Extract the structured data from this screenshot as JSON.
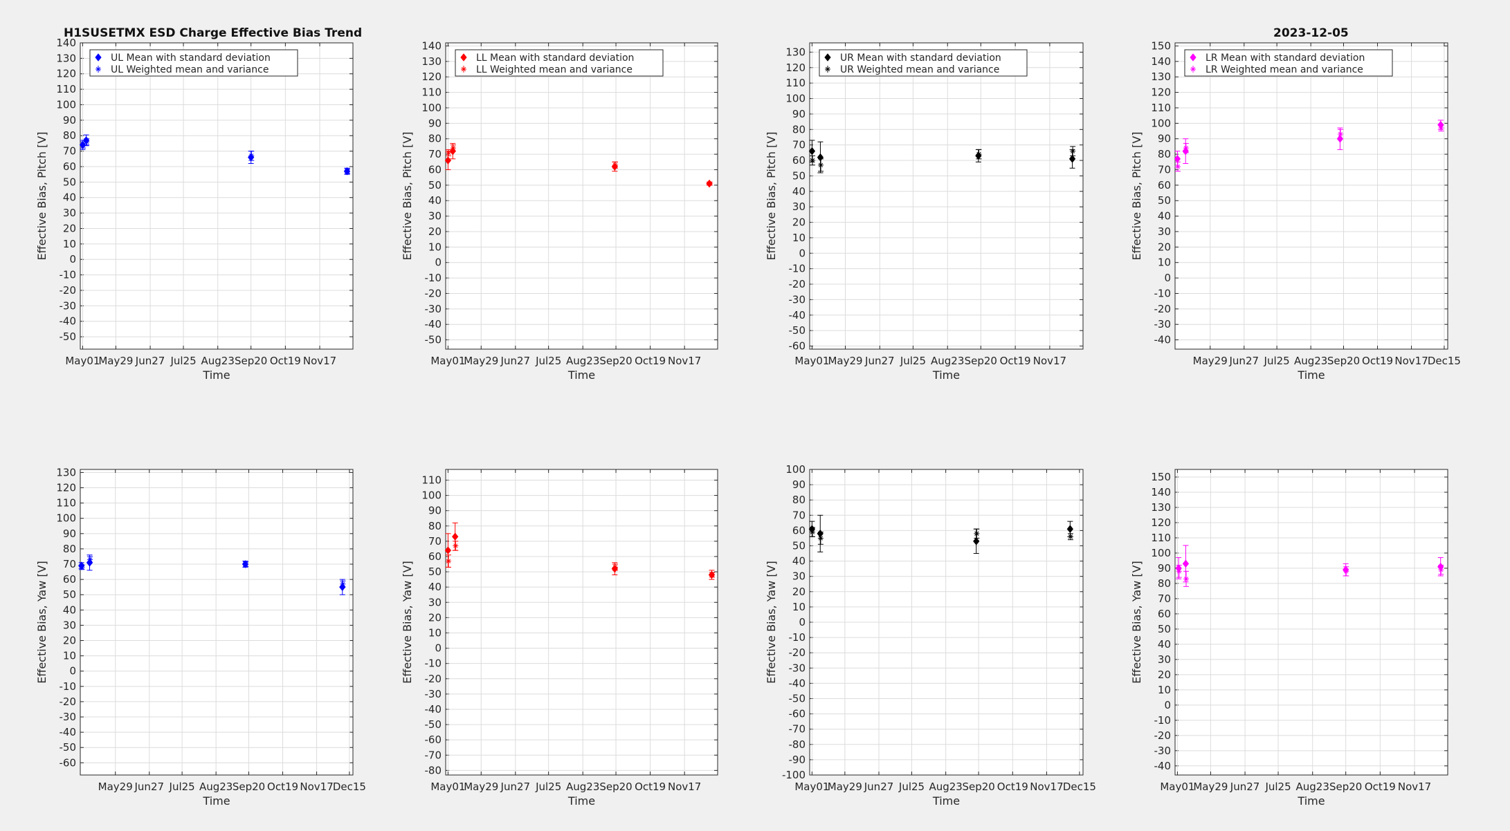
{
  "figure": {
    "title_left": "H1SUSETMX ESD Charge Effective Bias Trend",
    "title_right": "2023-12-05"
  },
  "chart_data": [
    {
      "id": "ul-pitch",
      "type": "scatter",
      "xlabel": "Time",
      "ylabel": "Effective Bias, Pitch [V]",
      "ylim": [
        -58,
        140
      ],
      "yticks_from": -50,
      "yticks_to": 140,
      "xlim": [
        "2023-04-29",
        "2023-12-15"
      ],
      "xticks": [
        "May01",
        "May29",
        "Jun27",
        "Jul25",
        "Aug23",
        "Sep20",
        "Oct19",
        "Nov17"
      ],
      "grid": true,
      "legend": "top-left",
      "color": "#0000ff",
      "legend_entries": [
        "UL Mean with standard deviation",
        "UL Weighted mean and variance"
      ],
      "series": [
        {
          "marker": "diamond",
          "points": [
            {
              "x": "2023-05-01",
              "y": 74,
              "err": 3
            },
            {
              "x": "2023-05-04",
              "y": 77,
              "err": 3.5
            },
            {
              "x": "2023-09-20",
              "y": 66,
              "err": 4
            },
            {
              "x": "2023-12-10",
              "y": 57,
              "err": 2
            }
          ]
        },
        {
          "marker": "asterisk",
          "points": [
            {
              "x": "2023-05-01",
              "y": 74,
              "err": 2
            },
            {
              "x": "2023-05-04",
              "y": 76,
              "err": 2
            },
            {
              "x": "2023-09-20",
              "y": 67,
              "err": 3
            },
            {
              "x": "2023-12-10",
              "y": 57,
              "err": 1.5
            }
          ]
        }
      ]
    },
    {
      "id": "ll-pitch",
      "type": "scatter",
      "xlabel": "Time",
      "ylabel": "Effective Bias, Pitch [V]",
      "ylim": [
        -56,
        142
      ],
      "yticks_from": -50,
      "yticks_to": 140,
      "xlim": [
        "2023-04-29",
        "2023-12-15"
      ],
      "xticks": [
        "May01",
        "May29",
        "Jun27",
        "Jul25",
        "Aug23",
        "Sep20",
        "Oct19",
        "Nov17"
      ],
      "grid": true,
      "legend": "top-left",
      "color": "#ff0000",
      "legend_entries": [
        "LL Mean with standard deviation",
        "LL Weighted mean and variance"
      ],
      "series": [
        {
          "marker": "diamond",
          "points": [
            {
              "x": "2023-05-01",
              "y": 66,
              "err": 6
            },
            {
              "x": "2023-05-05",
              "y": 72,
              "err": 5
            },
            {
              "x": "2023-09-19",
              "y": 62,
              "err": 3
            },
            {
              "x": "2023-12-08",
              "y": 51,
              "err": 1
            }
          ]
        },
        {
          "marker": "asterisk",
          "points": [
            {
              "x": "2023-05-01",
              "y": 71,
              "err": 2
            },
            {
              "x": "2023-05-05",
              "y": 74,
              "err": 2
            },
            {
              "x": "2023-09-19",
              "y": 63,
              "err": 2
            },
            {
              "x": "2023-12-08",
              "y": 51,
              "err": 1
            }
          ]
        }
      ]
    },
    {
      "id": "ur-pitch",
      "type": "scatter",
      "xlabel": "Time",
      "ylabel": "Effective Bias, Pitch [V]",
      "ylim": [
        -62,
        136
      ],
      "yticks_from": -60,
      "yticks_to": 130,
      "xlim": [
        "2023-04-29",
        "2023-12-15"
      ],
      "xticks": [
        "May01",
        "May29",
        "Jun27",
        "Jul25",
        "Aug23",
        "Sep20",
        "Oct19",
        "Nov17"
      ],
      "grid": true,
      "legend": "top-left",
      "color": "#000000",
      "legend_entries": [
        "UR Mean with standard deviation",
        "UR Weighted mean and variance"
      ],
      "series": [
        {
          "marker": "diamond",
          "points": [
            {
              "x": "2023-05-01",
              "y": 66,
              "err": 7
            },
            {
              "x": "2023-05-08",
              "y": 62,
              "err": 10
            },
            {
              "x": "2023-09-18",
              "y": 63,
              "err": 4
            },
            {
              "x": "2023-12-06",
              "y": 61,
              "err": 6
            }
          ]
        },
        {
          "marker": "asterisk",
          "points": [
            {
              "x": "2023-05-01",
              "y": 60,
              "err": 3
            },
            {
              "x": "2023-05-08",
              "y": 57,
              "err": 4
            },
            {
              "x": "2023-09-18",
              "y": 64,
              "err": 3
            },
            {
              "x": "2023-12-06",
              "y": 66,
              "err": 3
            }
          ]
        }
      ]
    },
    {
      "id": "lr-pitch",
      "type": "scatter",
      "xlabel": "Time",
      "ylabel": "Effective Bias, Pitch [V]",
      "ylim": [
        -46,
        152
      ],
      "yticks_from": -40,
      "yticks_to": 150,
      "xlim": [
        "2023-04-29",
        "2023-12-18"
      ],
      "xticks": [
        "May29",
        "Jun27",
        "Jul25",
        "Aug23",
        "Sep20",
        "Oct19",
        "Nov17",
        "Dec15"
      ],
      "grid": true,
      "legend": "top-left",
      "color": "#ff00ff",
      "legend_entries": [
        "LR Mean with standard deviation",
        "LR Weighted mean and variance"
      ],
      "series": [
        {
          "marker": "diamond",
          "points": [
            {
              "x": "2023-05-01",
              "y": 77,
              "err": 5
            },
            {
              "x": "2023-05-08",
              "y": 82,
              "err": 8
            },
            {
              "x": "2023-09-17",
              "y": 90,
              "err": 7
            },
            {
              "x": "2023-12-12",
              "y": 99,
              "err": 3
            }
          ]
        },
        {
          "marker": "asterisk",
          "points": [
            {
              "x": "2023-05-01",
              "y": 72,
              "err": 3
            },
            {
              "x": "2023-05-08",
              "y": 84,
              "err": 3
            },
            {
              "x": "2023-09-17",
              "y": 93,
              "err": 3
            },
            {
              "x": "2023-12-12",
              "y": 97,
              "err": 2
            }
          ]
        }
      ]
    },
    {
      "id": "ul-yaw",
      "type": "scatter",
      "xlabel": "Time",
      "ylabel": "Effective Bias, Yaw [V]",
      "ylim": [
        -68,
        132
      ],
      "yticks_from": -60,
      "yticks_to": 130,
      "xlim": [
        "2023-04-29",
        "2023-12-18"
      ],
      "xticks": [
        "May29",
        "Jun27",
        "Jul25",
        "Aug23",
        "Sep20",
        "Oct19",
        "Nov17",
        "Dec15"
      ],
      "grid": true,
      "color": "#0000ff",
      "series": [
        {
          "marker": "diamond",
          "points": [
            {
              "x": "2023-04-30",
              "y": 69,
              "err": 2
            },
            {
              "x": "2023-05-07",
              "y": 71,
              "err": 5
            },
            {
              "x": "2023-09-17",
              "y": 70,
              "err": 2
            },
            {
              "x": "2023-12-09",
              "y": 55,
              "err": 5
            }
          ]
        },
        {
          "marker": "asterisk",
          "points": [
            {
              "x": "2023-04-30",
              "y": 68,
              "err": 1.5
            },
            {
              "x": "2023-05-07",
              "y": 73,
              "err": 2
            },
            {
              "x": "2023-09-17",
              "y": 70,
              "err": 1.5
            },
            {
              "x": "2023-12-09",
              "y": 57,
              "err": 2
            }
          ]
        }
      ]
    },
    {
      "id": "ll-yaw",
      "type": "scatter",
      "xlabel": "Time",
      "ylabel": "Effective Bias, Yaw [V]",
      "ylim": [
        -83,
        117
      ],
      "yticks_from": -80,
      "yticks_to": 110,
      "xlim": [
        "2023-04-29",
        "2023-12-15"
      ],
      "xticks": [
        "May01",
        "May29",
        "Jun27",
        "Jul25",
        "Aug23",
        "Sep20",
        "Oct19",
        "Nov17"
      ],
      "grid": true,
      "color": "#ff0000",
      "series": [
        {
          "marker": "diamond",
          "points": [
            {
              "x": "2023-05-01",
              "y": 64,
              "err": 11
            },
            {
              "x": "2023-05-07",
              "y": 73,
              "err": 9
            },
            {
              "x": "2023-09-19",
              "y": 52,
              "err": 4
            },
            {
              "x": "2023-12-10",
              "y": 48,
              "err": 3
            }
          ]
        },
        {
          "marker": "asterisk",
          "points": [
            {
              "x": "2023-05-01",
              "y": 57,
              "err": 4
            },
            {
              "x": "2023-05-07",
              "y": 67,
              "err": 3
            },
            {
              "x": "2023-09-19",
              "y": 53,
              "err": 2
            },
            {
              "x": "2023-12-10",
              "y": 48,
              "err": 1.5
            }
          ]
        }
      ]
    },
    {
      "id": "ur-yaw",
      "type": "scatter",
      "xlabel": "Time",
      "ylabel": "Effective Bias, Yaw [V]",
      "ylim": [
        -100,
        100
      ],
      "yticks_from": -100,
      "yticks_to": 100,
      "xlim": [
        "2023-04-29",
        "2023-12-18"
      ],
      "xticks": [
        "May01",
        "May29",
        "Jun27",
        "Jul25",
        "Aug23",
        "Sep20",
        "Oct19",
        "Nov17",
        "Dec15"
      ],
      "grid": true,
      "color": "#000000",
      "series": [
        {
          "marker": "diamond",
          "points": [
            {
              "x": "2023-05-01",
              "y": 61,
              "err": 5
            },
            {
              "x": "2023-05-08",
              "y": 58,
              "err": 12
            },
            {
              "x": "2023-09-18",
              "y": 53,
              "err": 8
            },
            {
              "x": "2023-12-07",
              "y": 61,
              "err": 5
            }
          ]
        },
        {
          "marker": "asterisk",
          "points": [
            {
              "x": "2023-05-01",
              "y": 59,
              "err": 3
            },
            {
              "x": "2023-05-08",
              "y": 55,
              "err": 4
            },
            {
              "x": "2023-09-18",
              "y": 58,
              "err": 3
            },
            {
              "x": "2023-12-07",
              "y": 56,
              "err": 2
            }
          ]
        }
      ]
    },
    {
      "id": "lr-yaw",
      "type": "scatter",
      "xlabel": "Time",
      "ylabel": "Effective Bias, Yaw [V]",
      "ylim": [
        -46,
        155
      ],
      "yticks_from": -40,
      "yticks_to": 150,
      "xlim": [
        "2023-04-29",
        "2023-12-15"
      ],
      "xticks": [
        "May01",
        "May29",
        "Jun27",
        "Jul25",
        "Aug23",
        "Sep20",
        "Oct19",
        "Nov17"
      ],
      "grid": true,
      "color": "#ff00ff",
      "series": [
        {
          "marker": "diamond",
          "points": [
            {
              "x": "2023-05-02",
              "y": 90,
              "err": 7
            },
            {
              "x": "2023-05-08",
              "y": 93,
              "err": 12
            },
            {
              "x": "2023-09-20",
              "y": 89,
              "err": 4
            },
            {
              "x": "2023-12-09",
              "y": 91,
              "err": 6
            }
          ]
        },
        {
          "marker": "asterisk",
          "points": [
            {
              "x": "2023-05-02",
              "y": 88,
              "err": 4
            },
            {
              "x": "2023-05-08",
              "y": 83,
              "err": 5
            },
            {
              "x": "2023-09-20",
              "y": 88,
              "err": 3
            },
            {
              "x": "2023-12-09",
              "y": 89,
              "err": 3
            }
          ]
        }
      ]
    }
  ]
}
